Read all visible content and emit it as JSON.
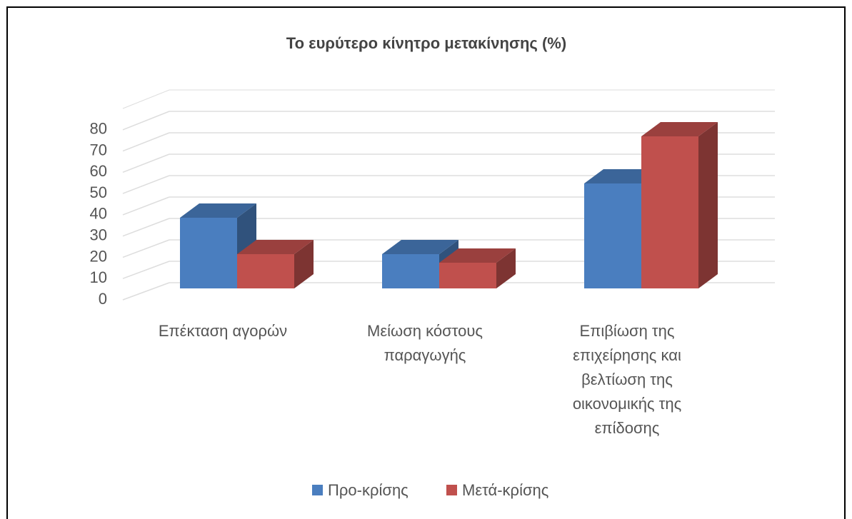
{
  "chart_data": {
    "type": "bar3d",
    "title": "Το ευρύτερο κίνητρο μετακίνησης (%)",
    "categories": [
      "Επέκταση αγορών",
      "Μείωση κόστους παραγωγής",
      "Επιβίωση της επιχείρησης και βελτίωση της οικονομικής της επίδοσης"
    ],
    "series": [
      {
        "name": "Προ-κρίσης",
        "color": "#4a7ebf",
        "values": [
          33,
          16,
          49
        ]
      },
      {
        "name": "Μετά-κρίσης",
        "color": "#c0504d",
        "values": [
          16,
          12,
          71
        ]
      }
    ],
    "ylim": [
      0,
      90
    ],
    "yticks": [
      0,
      10,
      20,
      30,
      40,
      50,
      60,
      70,
      80
    ],
    "grid": true,
    "legend": "bottom"
  }
}
